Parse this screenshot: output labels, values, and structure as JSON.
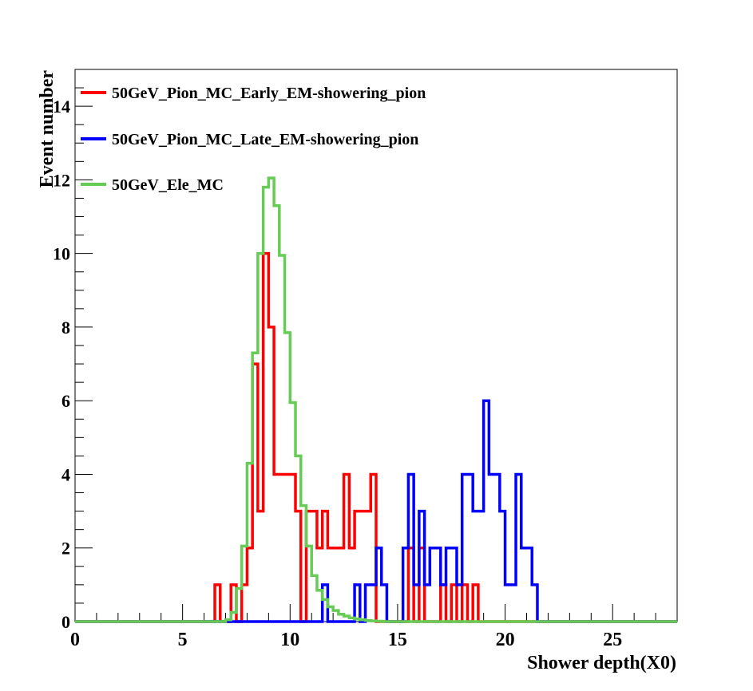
{
  "chart_data": {
    "type": "step-histogram",
    "title": "",
    "xlabel": "Shower depth(X0)",
    "ylabel": "Event number",
    "xlim": [
      0,
      28
    ],
    "ylim": [
      0,
      15
    ],
    "bin_width": 0.25,
    "xticks": [
      0,
      5,
      10,
      15,
      20,
      25
    ],
    "yticks": [
      0,
      2,
      4,
      6,
      8,
      10,
      12,
      14
    ],
    "legend_position": "top-left",
    "grid": false,
    "series": [
      {
        "name": "50GeV_Pion_MC_Early_EM-showering_pion",
        "color": "#ff0000",
        "bins": [
          [
            6.5,
            1
          ],
          [
            6.75,
            0
          ],
          [
            7.0,
            0
          ],
          [
            7.25,
            1
          ],
          [
            7.5,
            0
          ],
          [
            7.75,
            1
          ],
          [
            8.0,
            2
          ],
          [
            8.25,
            7
          ],
          [
            8.5,
            3
          ],
          [
            8.75,
            10
          ],
          [
            9.0,
            8
          ],
          [
            9.25,
            4
          ],
          [
            9.5,
            4
          ],
          [
            9.75,
            4
          ],
          [
            10.0,
            4
          ],
          [
            10.25,
            3
          ],
          [
            10.5,
            0
          ],
          [
            10.75,
            3
          ],
          [
            11.0,
            3
          ],
          [
            11.25,
            2
          ],
          [
            11.5,
            3
          ],
          [
            11.75,
            2
          ],
          [
            12.0,
            2
          ],
          [
            12.25,
            2
          ],
          [
            12.5,
            4
          ],
          [
            12.75,
            2
          ],
          [
            13.0,
            3
          ],
          [
            13.25,
            3
          ],
          [
            13.5,
            3
          ],
          [
            13.75,
            4
          ],
          [
            14.0,
            0
          ],
          [
            14.25,
            0
          ],
          [
            14.5,
            0
          ],
          [
            14.75,
            0
          ],
          [
            15.0,
            0
          ],
          [
            15.25,
            0
          ],
          [
            15.5,
            2
          ],
          [
            15.75,
            0
          ],
          [
            16.0,
            2
          ],
          [
            16.25,
            0
          ],
          [
            16.5,
            0
          ],
          [
            16.75,
            0
          ],
          [
            17.0,
            1
          ],
          [
            17.25,
            0
          ],
          [
            17.5,
            1
          ],
          [
            17.75,
            0
          ],
          [
            18.0,
            1
          ],
          [
            18.25,
            0
          ],
          [
            18.5,
            1
          ],
          [
            18.75,
            0
          ]
        ]
      },
      {
        "name": "50GeV_Pion_MC_Late_EM-showering_pion",
        "color": "#0000ff",
        "bins": [
          [
            11.5,
            1
          ],
          [
            11.75,
            0
          ],
          [
            12.0,
            0
          ],
          [
            12.25,
            0
          ],
          [
            12.5,
            0
          ],
          [
            12.75,
            0
          ],
          [
            13.0,
            1
          ],
          [
            13.25,
            0
          ],
          [
            13.5,
            1
          ],
          [
            13.75,
            1
          ],
          [
            14.0,
            2
          ],
          [
            14.25,
            1
          ],
          [
            14.5,
            0
          ],
          [
            14.75,
            0
          ],
          [
            15.0,
            0
          ],
          [
            15.25,
            2
          ],
          [
            15.5,
            4
          ],
          [
            15.75,
            1
          ],
          [
            16.0,
            3
          ],
          [
            16.25,
            1
          ],
          [
            16.5,
            2
          ],
          [
            16.75,
            2
          ],
          [
            17.0,
            1
          ],
          [
            17.25,
            2
          ],
          [
            17.5,
            2
          ],
          [
            17.75,
            1
          ],
          [
            18.0,
            4
          ],
          [
            18.25,
            4
          ],
          [
            18.5,
            3
          ],
          [
            18.75,
            3
          ],
          [
            19.0,
            6
          ],
          [
            19.25,
            4
          ],
          [
            19.5,
            4
          ],
          [
            19.75,
            3
          ],
          [
            20.0,
            1
          ],
          [
            20.25,
            1
          ],
          [
            20.5,
            4
          ],
          [
            20.75,
            2
          ],
          [
            21.0,
            2
          ],
          [
            21.25,
            1
          ],
          [
            21.5,
            0
          ]
        ]
      },
      {
        "name": "50GeV_Ele_MC",
        "color": "#66cc55",
        "bins": [
          [
            7.0,
            0.05
          ],
          [
            7.25,
            0.25
          ],
          [
            7.5,
            0.9
          ],
          [
            7.75,
            2.05
          ],
          [
            8.0,
            4.3
          ],
          [
            8.25,
            7.3
          ],
          [
            8.5,
            10.0
          ],
          [
            8.75,
            11.8
          ],
          [
            9.0,
            12.05
          ],
          [
            9.25,
            11.3
          ],
          [
            9.5,
            9.95
          ],
          [
            9.75,
            7.85
          ],
          [
            10.0,
            5.95
          ],
          [
            10.25,
            4.5
          ],
          [
            10.5,
            3.15
          ],
          [
            10.75,
            2.05
          ],
          [
            11.0,
            1.25
          ],
          [
            11.25,
            0.85
          ],
          [
            11.5,
            0.6
          ],
          [
            11.75,
            0.4
          ],
          [
            12.0,
            0.3
          ],
          [
            12.25,
            0.2
          ],
          [
            12.5,
            0.15
          ],
          [
            12.75,
            0.1
          ],
          [
            13.0,
            0.07
          ],
          [
            13.25,
            0.05
          ],
          [
            13.5,
            0.03
          ],
          [
            13.75,
            0.02
          ],
          [
            14.0,
            0.01
          ]
        ]
      }
    ]
  }
}
